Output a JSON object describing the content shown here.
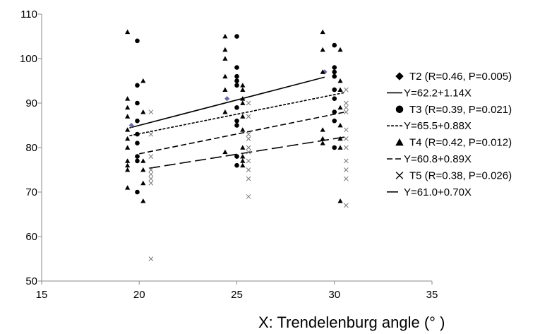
{
  "chart_data": {
    "type": "scatter",
    "title": "",
    "xlabel": "X: Trendelenburg angle (° )",
    "ylabel": "",
    "xlim": [
      15,
      35
    ],
    "ylim": [
      50,
      110
    ],
    "x_ticks": [
      "15",
      "20",
      "25",
      "30",
      "35"
    ],
    "y_ticks": [
      "50",
      "60",
      "70",
      "80",
      "90",
      "100",
      "110"
    ],
    "grid": false,
    "legend_position": "right",
    "series": [
      {
        "name": "T2 (R=0.46, P=0.005)",
        "marker": "diamond",
        "points": [
          [
            19.6,
            85
          ],
          [
            24.5,
            91
          ],
          [
            29.5,
            97
          ]
        ],
        "fit": {
          "label": "Y=62.2+1.14X",
          "intercept": 62.2,
          "slope": 1.14,
          "dash": "solid",
          "x_range": [
            19.5,
            29.5
          ]
        }
      },
      {
        "name": "T3 (R=0.39, P=0.021)",
        "marker": "circle",
        "points": [
          [
            19.9,
            104
          ],
          [
            19.9,
            94
          ],
          [
            19.9,
            90
          ],
          [
            19.9,
            86
          ],
          [
            19.9,
            83
          ],
          [
            19.9,
            81
          ],
          [
            19.9,
            78
          ],
          [
            19.9,
            77
          ],
          [
            19.9,
            70
          ],
          [
            25.0,
            105
          ],
          [
            25.0,
            98
          ],
          [
            25.0,
            96
          ],
          [
            25.0,
            95
          ],
          [
            25.0,
            94
          ],
          [
            25.0,
            89
          ],
          [
            25.0,
            86
          ],
          [
            25.0,
            85
          ],
          [
            25.0,
            78
          ],
          [
            25.0,
            76
          ],
          [
            30.0,
            103
          ],
          [
            30.0,
            98
          ],
          [
            30.0,
            97
          ],
          [
            30.0,
            96
          ],
          [
            30.0,
            93
          ],
          [
            30.0,
            91
          ],
          [
            30.0,
            88
          ],
          [
            30.0,
            86
          ],
          [
            30.0,
            80
          ]
        ],
        "fit": {
          "label": "Y=65.5+0.88X",
          "intercept": 65.5,
          "slope": 0.88,
          "dash": "short",
          "x_range": [
            19.5,
            30.5
          ]
        }
      },
      {
        "name": "T4 (R=0.42, P=0.012)",
        "marker": "triangle",
        "points": [
          [
            19.4,
            106
          ],
          [
            19.4,
            91
          ],
          [
            19.4,
            89
          ],
          [
            19.4,
            87
          ],
          [
            19.4,
            84
          ],
          [
            19.4,
            82
          ],
          [
            19.4,
            80
          ],
          [
            19.4,
            77
          ],
          [
            19.4,
            76
          ],
          [
            19.4,
            75
          ],
          [
            19.4,
            71
          ],
          [
            20.2,
            95
          ],
          [
            20.2,
            88
          ],
          [
            20.2,
            77
          ],
          [
            20.2,
            75
          ],
          [
            20.2,
            72
          ],
          [
            20.2,
            68
          ],
          [
            24.4,
            105
          ],
          [
            24.4,
            102
          ],
          [
            24.4,
            100
          ],
          [
            24.4,
            96
          ],
          [
            24.4,
            93
          ],
          [
            24.4,
            88
          ],
          [
            24.4,
            79
          ],
          [
            25.3,
            94
          ],
          [
            25.3,
            93
          ],
          [
            25.3,
            91
          ],
          [
            25.3,
            90
          ],
          [
            25.3,
            87
          ],
          [
            25.3,
            84
          ],
          [
            25.3,
            80
          ],
          [
            25.3,
            78
          ],
          [
            25.3,
            77
          ],
          [
            25.3,
            76
          ],
          [
            29.4,
            106
          ],
          [
            29.4,
            102
          ],
          [
            29.4,
            97
          ],
          [
            29.4,
            84
          ],
          [
            29.4,
            82
          ],
          [
            29.4,
            81
          ],
          [
            30.3,
            102
          ],
          [
            30.3,
            95
          ],
          [
            30.3,
            93
          ],
          [
            30.3,
            89
          ],
          [
            30.3,
            85
          ],
          [
            30.3,
            82
          ],
          [
            30.3,
            80
          ],
          [
            30.3,
            68
          ]
        ],
        "fit": {
          "label": "Y=60.8+0.89X",
          "intercept": 60.8,
          "slope": 0.89,
          "dash": "medium",
          "x_range": [
            20.0,
            30.5
          ]
        }
      },
      {
        "name": "T5 (R=0.38, P=0.026)",
        "marker": "x",
        "points": [
          [
            20.6,
            88
          ],
          [
            20.6,
            83
          ],
          [
            20.6,
            78
          ],
          [
            20.6,
            75
          ],
          [
            20.6,
            74
          ],
          [
            20.6,
            73
          ],
          [
            20.6,
            72
          ],
          [
            20.6,
            55
          ],
          [
            25.6,
            90
          ],
          [
            25.6,
            87
          ],
          [
            25.6,
            83
          ],
          [
            25.6,
            82
          ],
          [
            25.6,
            80
          ],
          [
            25.6,
            79
          ],
          [
            25.6,
            77
          ],
          [
            25.6,
            75
          ],
          [
            25.6,
            73
          ],
          [
            25.6,
            69
          ],
          [
            30.6,
            93
          ],
          [
            30.6,
            90
          ],
          [
            30.6,
            89
          ],
          [
            30.6,
            88
          ],
          [
            30.6,
            84
          ],
          [
            30.6,
            82
          ],
          [
            30.6,
            80
          ],
          [
            30.6,
            77
          ],
          [
            30.6,
            75
          ],
          [
            30.6,
            73
          ],
          [
            30.6,
            67
          ]
        ],
        "fit": {
          "label": "Y=61.0+0.70X",
          "intercept": 61.0,
          "slope": 0.7,
          "dash": "long",
          "x_range": [
            20.5,
            30.5
          ]
        }
      }
    ]
  }
}
